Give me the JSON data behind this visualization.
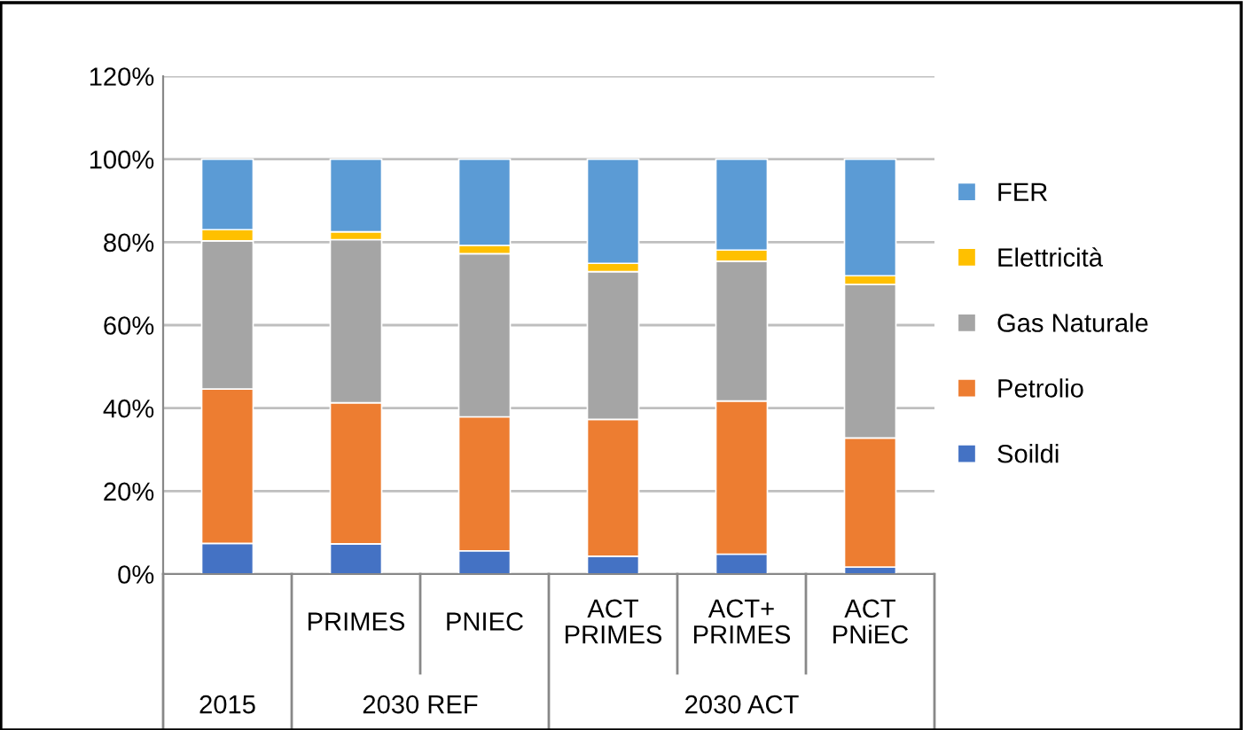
{
  "chart_data": {
    "type": "bar",
    "stacked": true,
    "categories": [
      null,
      "PRIMES",
      "PNIEC",
      "ACT\nPRIMES",
      "ACT+\nPRIMES",
      "ACT\nPNiEC"
    ],
    "series": [
      {
        "name": "Soildi",
        "color": "#4472c4",
        "values": [
          7.4,
          7.3,
          5.6,
          4.3,
          4.8,
          1.7
        ]
      },
      {
        "name": "Petrolio",
        "color": "#ed7d31",
        "values": [
          37.2,
          34.0,
          32.3,
          33.0,
          36.9,
          31.1
        ]
      },
      {
        "name": "Gas Naturale",
        "color": "#a5a5a5",
        "values": [
          35.7,
          39.3,
          39.3,
          35.6,
          33.7,
          37.0
        ]
      },
      {
        "name": "Elettricità",
        "color": "#ffc000",
        "values": [
          2.7,
          1.9,
          2.0,
          2.0,
          2.7,
          2.1
        ]
      },
      {
        "name": "FER",
        "color": "#5b9bd5",
        "values": [
          17.0,
          17.5,
          20.8,
          25.1,
          21.9,
          28.1
        ]
      }
    ],
    "annotations": [
      "2015",
      "2030 REF",
      "2030 ACT"
    ],
    "ylim": [
      0,
      120
    ],
    "yticks": [
      {
        "value": 0,
        "label": "0%"
      },
      {
        "value": 20,
        "label": "20%"
      },
      {
        "value": 40,
        "label": "40%"
      },
      {
        "value": 60,
        "label": "60%"
      },
      {
        "value": 80,
        "label": "80%"
      },
      {
        "value": 100,
        "label": "100%"
      },
      {
        "value": 120,
        "label": "120%"
      }
    ],
    "grid": "y",
    "legend": "right"
  }
}
